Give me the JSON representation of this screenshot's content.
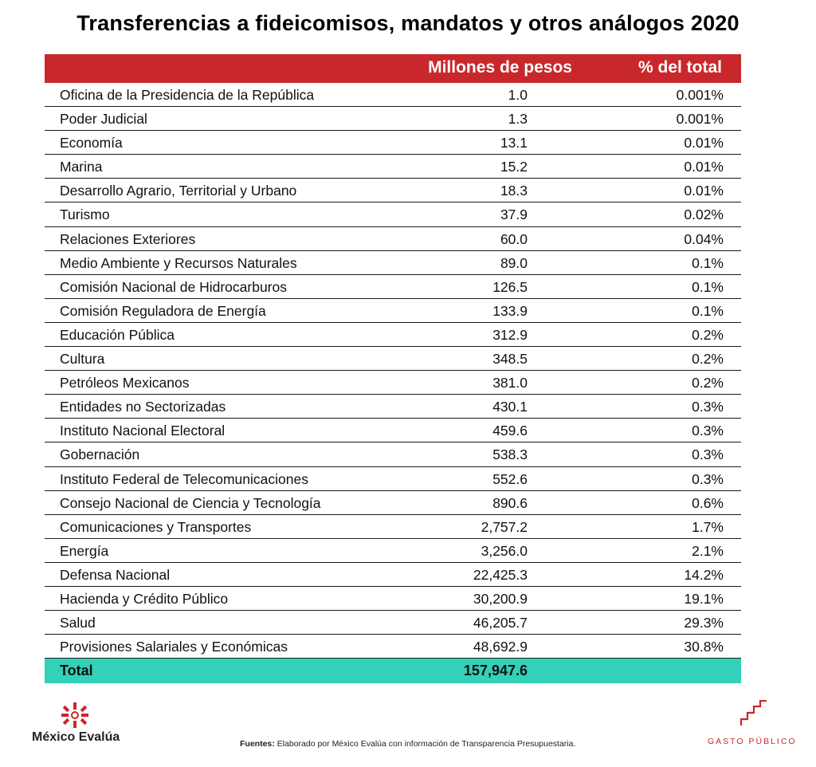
{
  "title": "Transferencias a fideicomisos, mandatos y otros análogos 2020",
  "table": {
    "headers": {
      "amount": "Millones de pesos",
      "pct": "% del total"
    },
    "rows": [
      {
        "name": "Oficina de la Presidencia de la República",
        "amount": "1.0",
        "pct": "0.001%"
      },
      {
        "name": "Poder Judicial",
        "amount": "1.3",
        "pct": "0.001%"
      },
      {
        "name": "Economía",
        "amount": "13.1",
        "pct": "0.01%"
      },
      {
        "name": "Marina",
        "amount": "15.2",
        "pct": "0.01%"
      },
      {
        "name": "Desarrollo Agrario, Territorial y Urbano",
        "amount": "18.3",
        "pct": "0.01%"
      },
      {
        "name": "Turismo",
        "amount": "37.9",
        "pct": "0.02%"
      },
      {
        "name": "Relaciones Exteriores",
        "amount": "60.0",
        "pct": "0.04%"
      },
      {
        "name": "Medio Ambiente y Recursos Naturales",
        "amount": "89.0",
        "pct": "0.1%"
      },
      {
        "name": "Comisión Nacional de Hidrocarburos",
        "amount": "126.5",
        "pct": "0.1%"
      },
      {
        "name": "Comisión Reguladora de Energía",
        "amount": "133.9",
        "pct": "0.1%"
      },
      {
        "name": "Educación Pública",
        "amount": "312.9",
        "pct": "0.2%"
      },
      {
        "name": "Cultura",
        "amount": "348.5",
        "pct": "0.2%"
      },
      {
        "name": "Petróleos Mexicanos",
        "amount": "381.0",
        "pct": "0.2%"
      },
      {
        "name": "Entidades no Sectorizadas",
        "amount": "430.1",
        "pct": "0.3%"
      },
      {
        "name": "Instituto Nacional Electoral",
        "amount": "459.6",
        "pct": "0.3%"
      },
      {
        "name": "Gobernación",
        "amount": "538.3",
        "pct": "0.3%"
      },
      {
        "name": "Instituto Federal de Telecomunicaciones",
        "amount": "552.6",
        "pct": "0.3%"
      },
      {
        "name": "Consejo Nacional de Ciencia y Tecnología",
        "amount": "890.6",
        "pct": "0.6%"
      },
      {
        "name": "Comunicaciones y Transportes",
        "amount": "2,757.2",
        "pct": "1.7%"
      },
      {
        "name": "Energía",
        "amount": "3,256.0",
        "pct": "2.1%"
      },
      {
        "name": "Defensa Nacional",
        "amount": "22,425.3",
        "pct": "14.2%"
      },
      {
        "name": "Hacienda y Crédito Público",
        "amount": "30,200.9",
        "pct": "19.1%"
      },
      {
        "name": "Salud",
        "amount": "46,205.7",
        "pct": "29.3%"
      },
      {
        "name": "Provisiones Salariales y Económicas",
        "amount": "48,692.9",
        "pct": "30.8%"
      }
    ],
    "total": {
      "name": "Total",
      "amount": "157,947.6"
    }
  },
  "footer": {
    "org_name": "México Evalúa",
    "source_label": "Fuentes:",
    "source_text": " Elaborado por México Evalúa con información de Transparencia Presupuestaria.",
    "brand": "GASTO PÚBLICO"
  },
  "colors": {
    "header": "#c8282c",
    "total": "#33d1b8",
    "brand": "#c8282c"
  },
  "icons": {
    "left_logo": "mexico-evalua-star-icon",
    "right_logo": "stairs-icon"
  }
}
